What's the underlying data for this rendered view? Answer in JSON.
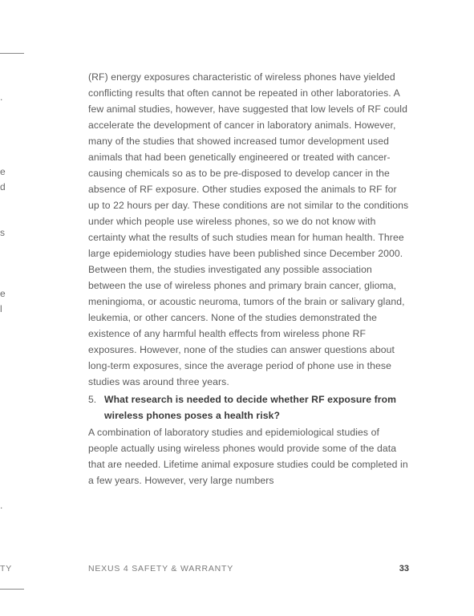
{
  "body_paragraph": "(RF) energy exposures characteristic of wireless phones have yielded conflicting results that often cannot be repeated in other laboratories. A few animal studies, however, have suggested that low levels of RF could accelerate the development of cancer in laboratory animals. However, many of the studies that showed increased tumor development used animals that had been genetically engineered or treated with cancer-causing chemicals so as to be pre-disposed to develop cancer in the absence of RF exposure. Other studies exposed the animals to RF for up to 22 hours per day. These conditions are not similar to the conditions under which people use wireless phones, so we do not know with certainty what the results of such studies mean for human health. Three large epidemiology studies have been published since December 2000. Between them, the studies investigated any possible association between the use of wireless phones and primary brain cancer, glioma, meningioma, or acoustic neuroma, tumors of the brain or salivary gland, leukemia, or other cancers. None of the studies demonstrated the existence of any harmful health effects from wireless phone RF exposures. However, none of the studies can answer questions about long-term exposures, since the average period of phone use in these studies was around three years.",
  "list_number": "5.",
  "list_question": "What research is needed to decide whether RF exposure from wireless phones poses a health risk?",
  "answer_paragraph": "A combination of laboratory studies and epidemiological studies of people actually using wireless phones would provide some of the data that are needed. Lifetime animal exposure studies could be completed in a few years. However, very large numbers",
  "footer_title": "NEXUS 4 SAFETY & WARRANTY",
  "footer_page": "33",
  "fragments": {
    "f1": ".",
    "f2": "e",
    "f3": "d",
    "f4": "s",
    "f5": "e",
    "f6": "l",
    "f7": ".",
    "f8": "TY"
  }
}
